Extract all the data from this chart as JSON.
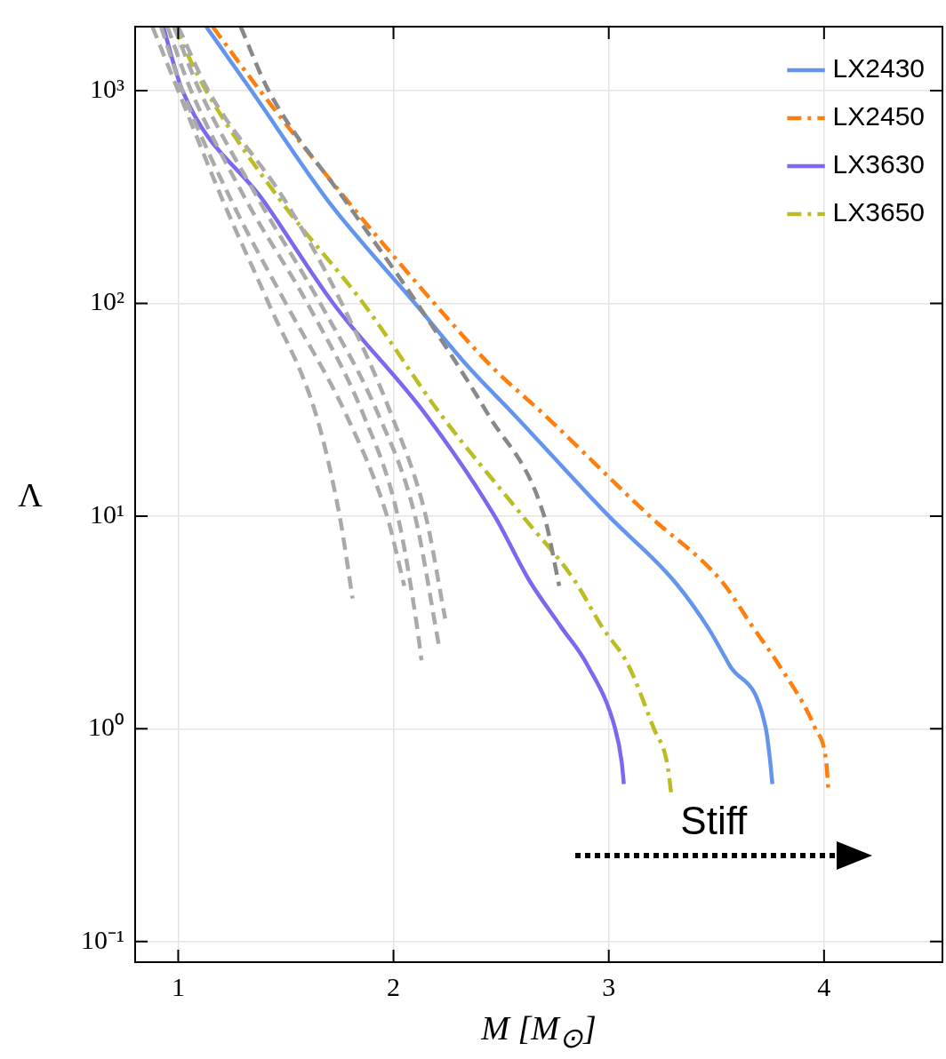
{
  "chart_data": {
    "type": "line",
    "xlabel": "M [M$_{⊙}$]",
    "ylabel": "Λ",
    "log": "y",
    "grid": true,
    "legend": "top right",
    "marker": "none",
    "xlim": [
      0.8,
      4.55
    ],
    "xticks": [
      1,
      2,
      3,
      4
    ],
    "ylim": [
      0.08,
      2000
    ],
    "yticks": [
      {
        "value": 0.1,
        "label": "10⁻¹"
      },
      {
        "value": 1,
        "label": "10⁰"
      },
      {
        "value": 10,
        "label": "10¹"
      },
      {
        "value": 100,
        "label": "10²"
      },
      {
        "value": 1000,
        "label": "10³"
      }
    ],
    "annotations": [
      "Stiff"
    ],
    "series": [
      {
        "color": "#aaaaaa",
        "line_style": "dashed",
        "x": [
          0.88,
          1.0,
          1.21,
          1.42,
          1.64,
          1.75,
          1.81
        ],
        "values": [
          2000,
          1000,
          300,
          100,
          30,
          10,
          4.1
        ]
      },
      {
        "color": "#aaaaaa",
        "line_style": "dashed",
        "x": [
          0.92,
          1.02,
          1.25,
          1.5,
          1.78,
          1.97,
          2.05
        ],
        "values": [
          2000,
          1000,
          300,
          100,
          30,
          10,
          4.7
        ]
      },
      {
        "color": "#aaaaaa",
        "line_style": "dashed",
        "x": [
          0.95,
          1.06,
          1.32,
          1.6,
          1.86,
          2.02,
          2.11,
          2.13
        ],
        "values": [
          2000,
          1000,
          300,
          100,
          30,
          10,
          3,
          2.1
        ]
      },
      {
        "color": "#aaaaaa",
        "line_style": "dashed",
        "x": [
          0.98,
          1.1,
          1.38,
          1.66,
          1.93,
          2.1,
          2.21
        ],
        "values": [
          2000,
          1000,
          300,
          100,
          30,
          10,
          2.5
        ]
      },
      {
        "color": "#aaaaaa",
        "line_style": "dashed",
        "x": [
          1.0,
          1.14,
          1.5,
          1.76,
          1.99,
          2.15,
          2.24
        ],
        "values": [
          2000,
          1000,
          300,
          100,
          30,
          10,
          3.3
        ]
      },
      {
        "color": "#888888",
        "line_style": "dashed",
        "x": [
          1.29,
          1.42,
          1.78,
          2.11,
          2.44,
          2.7,
          2.77
        ],
        "values": [
          2000,
          1000,
          300,
          100,
          30,
          10,
          4.7
        ]
      },
      {
        "name": "LX2430",
        "color": "#6495ed",
        "line_style": "solid",
        "x": [
          1.13,
          1.34,
          1.7,
          2.1,
          2.35,
          2.56,
          3.0,
          3.3,
          3.46,
          3.56,
          3.73,
          3.75,
          3.76
        ],
        "values": [
          2000,
          1000,
          300,
          100,
          50,
          30,
          10,
          5,
          3,
          2,
          1,
          0.7,
          0.55
        ]
      },
      {
        "name": "LX2450",
        "color": "#ff7f0e",
        "line_style": "dashdot",
        "x": [
          1.16,
          1.38,
          1.79,
          2.19,
          2.46,
          2.7,
          3.19,
          3.52,
          3.67,
          3.79,
          3.96,
          4.01,
          4.02
        ],
        "values": [
          2000,
          1000,
          300,
          100,
          50,
          30,
          10,
          5,
          3,
          2,
          1,
          0.7,
          0.52
        ]
      },
      {
        "name": "LX3630",
        "color": "#7b68ee",
        "line_style": "solid",
        "x": [
          0.93,
          1.02,
          1.4,
          1.72,
          2.15,
          2.47,
          2.63,
          2.78,
          2.9,
          3.03,
          3.06,
          3.07
        ],
        "values": [
          2000,
          1000,
          300,
          100,
          30,
          10,
          5,
          3,
          2,
          1,
          0.7,
          0.55
        ]
      },
      {
        "name": "LX3650",
        "color": "#bcbd22",
        "line_style": "dashdot",
        "x": [
          0.98,
          1.13,
          1.48,
          1.86,
          2.22,
          2.6,
          2.84,
          2.97,
          3.09,
          3.21,
          3.27,
          3.29
        ],
        "values": [
          2000,
          1000,
          300,
          100,
          30,
          10,
          5,
          3,
          2,
          1,
          0.7,
          0.5
        ]
      }
    ]
  }
}
